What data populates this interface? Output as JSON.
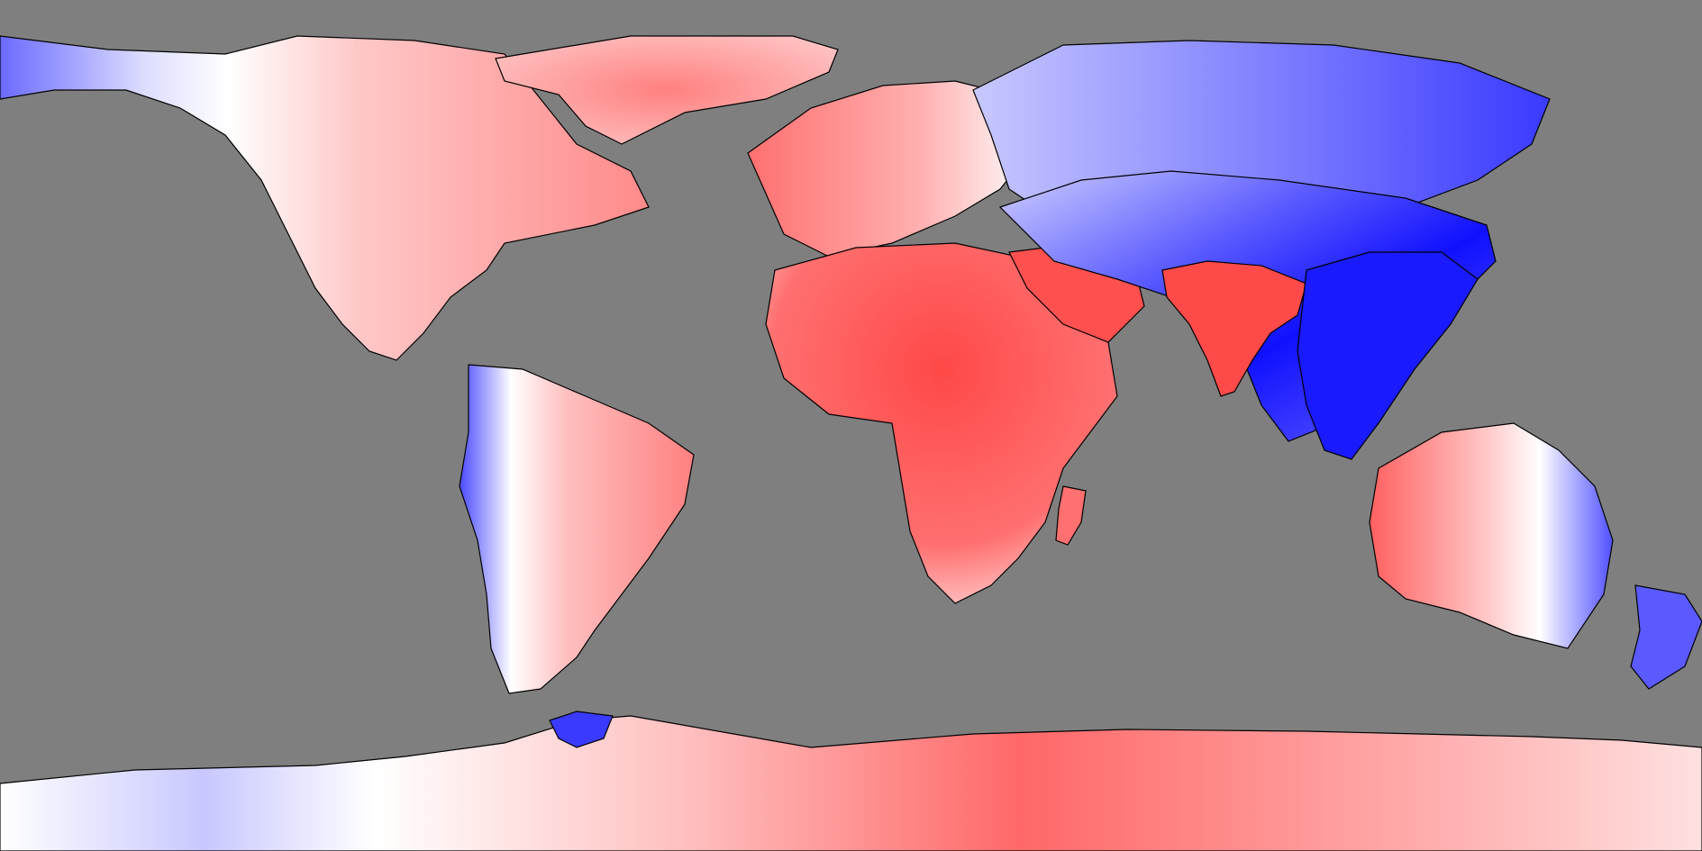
{
  "map": {
    "projection": "equirectangular",
    "background_color": "#7f7f7f",
    "coastline_color": "#000000",
    "colormap": {
      "negative": "#0000ff",
      "neutral": "#ffffff",
      "positive": "#ff3b3b"
    },
    "regions": [
      {
        "name": "north-america-west",
        "sign": "negative"
      },
      {
        "name": "north-america-east",
        "sign": "positive"
      },
      {
        "name": "greenland",
        "sign": "positive"
      },
      {
        "name": "europe",
        "sign": "positive"
      },
      {
        "name": "africa",
        "sign": "positive"
      },
      {
        "name": "arabia",
        "sign": "positive"
      },
      {
        "name": "india",
        "sign": "positive"
      },
      {
        "name": "central-asia",
        "sign": "negative"
      },
      {
        "name": "siberia",
        "sign": "negative"
      },
      {
        "name": "east-asia",
        "sign": "negative"
      },
      {
        "name": "south-america-west",
        "sign": "negative"
      },
      {
        "name": "south-america-east",
        "sign": "positive"
      },
      {
        "name": "australia-west",
        "sign": "positive"
      },
      {
        "name": "australia-east",
        "sign": "negative"
      },
      {
        "name": "antarctica-west",
        "sign": "negative"
      },
      {
        "name": "antarctica-east",
        "sign": "positive"
      }
    ]
  }
}
